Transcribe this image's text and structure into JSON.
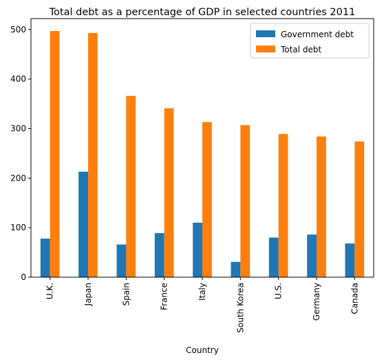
{
  "chart_data": {
    "type": "bar",
    "title": "Total debt as a percentage of GDP in selected countries 2011",
    "xlabel": "Country",
    "ylabel": "",
    "categories": [
      "U.K.",
      "Japan",
      "Spain",
      "France",
      "Italy",
      "South Korea",
      "U.S.",
      "Germany",
      "Canada"
    ],
    "series": [
      {
        "name": "Government debt",
        "color": "#1f77b4",
        "values": [
          78,
          213,
          66,
          89,
          110,
          31,
          80,
          86,
          68
        ]
      },
      {
        "name": "Total debt",
        "color": "#ff7f0e",
        "values": [
          497,
          493,
          366,
          341,
          313,
          307,
          289,
          284,
          274
        ]
      }
    ],
    "ylim": [
      0,
      522
    ],
    "yticks": [
      0,
      100,
      200,
      300,
      400,
      500
    ],
    "grid": false,
    "legend_position": "top-right"
  }
}
